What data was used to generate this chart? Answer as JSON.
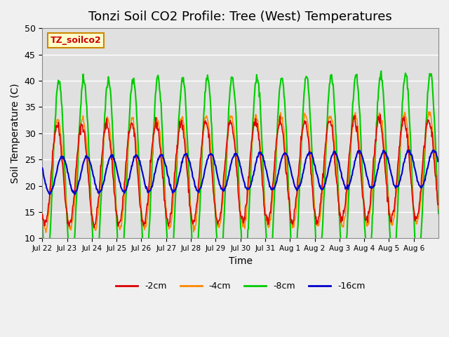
{
  "title": "Tonzi Soil CO2 Profile: Tree (West) Temperatures",
  "xlabel": "Time",
  "ylabel": "Soil Temperature (C)",
  "ylim": [
    10,
    50
  ],
  "yticks": [
    10,
    15,
    20,
    25,
    30,
    35,
    40,
    45,
    50
  ],
  "x_tick_labels": [
    "Jul 22",
    "Jul 23",
    "Jul 24",
    "Jul 25",
    "Jul 26",
    "Jul 27",
    "Jul 28",
    "Jul 29",
    "Jul 30",
    "Jul 31",
    "Aug 1",
    "Aug 2",
    "Aug 3",
    "Aug 4",
    "Aug 5",
    "Aug 6"
  ],
  "legend_label": "TZ_soilco2",
  "series_labels": [
    "-2cm",
    "-4cm",
    "-8cm",
    "-16cm"
  ],
  "series_colors": [
    "#dd0000",
    "#ff8800",
    "#00cc00",
    "#0000cc"
  ],
  "background_color": "#e0e0e0",
  "grid_color": "#ffffff",
  "title_fontsize": 13,
  "axis_label_fontsize": 10,
  "n_days": 16,
  "pts_per_day": 48
}
